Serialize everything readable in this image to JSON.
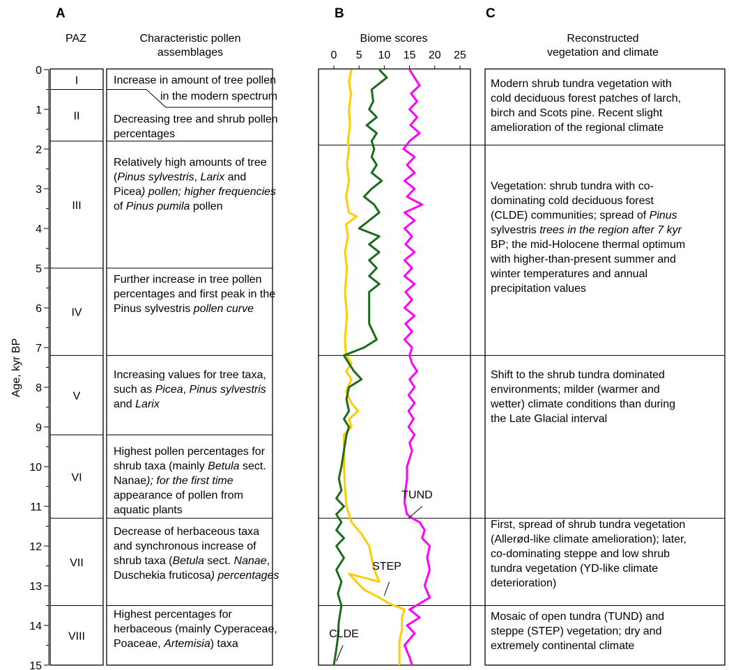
{
  "panels": {
    "a": "A",
    "b": "B",
    "c": "C"
  },
  "headers": {
    "paz": "PAZ",
    "assemblages": [
      "Characteristic pollen",
      "assemblages"
    ],
    "biome": "Biome scores",
    "reconstructed": [
      "Reconstructed",
      "vegetation and climate"
    ]
  },
  "age_axis": {
    "label": "Age, kyr BP",
    "ticks": [
      "0",
      "1",
      "2",
      "3",
      "4",
      "5",
      "6",
      "7",
      "8",
      "9",
      "10",
      "11",
      "12",
      "13",
      "14",
      "15"
    ],
    "range": [
      0,
      15
    ]
  },
  "zones": [
    {
      "id": "I",
      "top": 0,
      "bottom": 0.5
    },
    {
      "id": "II",
      "top": 0.5,
      "bottom": 1.8
    },
    {
      "id": "III",
      "top": 1.8,
      "bottom": 5
    },
    {
      "id": "IV",
      "top": 5,
      "bottom": 7.2
    },
    {
      "id": "V",
      "top": 7.2,
      "bottom": 9.2
    },
    {
      "id": "VI",
      "top": 9.2,
      "bottom": 11.3
    },
    {
      "id": "VII",
      "top": 11.3,
      "bottom": 13.5
    },
    {
      "id": "VIII",
      "top": 13.5,
      "bottom": 15
    }
  ],
  "assemblages": [
    {
      "lines": [
        [
          "Increase in amount of tree pollen"
        ],
        [
          "in the modern spectrum"
        ]
      ]
    },
    {
      "lines": [
        [
          "Decreasing tree and shrub pollen"
        ],
        [
          "percentages"
        ]
      ]
    },
    {
      "lines": [
        [
          "Relatively high amounts of tree"
        ],
        [
          "(",
          "Pinus sylvestris",
          ", ",
          "Larix",
          " and"
        ],
        [
          "Picea",
          ") pollen; higher frequencies"
        ],
        [
          "of ",
          "Pinus pumila",
          " pollen"
        ]
      ]
    },
    {
      "lines": [
        [
          "Further increase in tree pollen"
        ],
        [
          "percentages and first peak in the"
        ],
        [
          "Pinus sylvestris",
          " pollen curve"
        ]
      ]
    },
    {
      "lines": [
        [
          "Increasing values for tree taxa,"
        ],
        [
          "such as ",
          "Picea",
          ", ",
          "Pinus sylvestris"
        ],
        [
          "and ",
          "Larix"
        ]
      ]
    },
    {
      "lines": [
        [
          "Highest pollen percentages for"
        ],
        [
          "shrub taxa (mainly ",
          "Betula",
          " sect."
        ],
        [
          "Nanae",
          "); for the first time"
        ],
        [
          "appearance of pollen from"
        ],
        [
          "aquatic plants"
        ]
      ]
    },
    {
      "lines": [
        [
          "Decrease of herbaceous taxa"
        ],
        [
          "and synchronous increase of"
        ],
        [
          "shrub taxa (",
          "Betula",
          " sect. ",
          "Nanae",
          ","
        ],
        [
          "Duschekia fruticosa",
          ") percentages"
        ]
      ]
    },
    {
      "lines": [
        [
          "Highest percentages for"
        ],
        [
          "herbaceous (mainly Cyperaceae,"
        ],
        [
          "Poaceae,  ",
          "Artemisia",
          ") taxa"
        ]
      ]
    }
  ],
  "reconstructions": [
    {
      "top": 0,
      "bottom": 1.9,
      "lines": [
        [
          "Modern shrub tundra vegetation with"
        ],
        [
          "cold deciduous forest patches of larch,"
        ],
        [
          "birch and Scots pine. Recent slight"
        ],
        [
          "amelioration of the regional climate"
        ]
      ]
    },
    {
      "top": 1.9,
      "bottom": 7.2,
      "lines": [
        [
          "Vegetation: shrub tundra with co-"
        ],
        [
          "dominating cold deciduous forest"
        ],
        [
          "(CLDE) communities; spread of ",
          "Pinus"
        ],
        [
          "sylvestris",
          " trees in the region after 7 kyr"
        ],
        [
          "BP; the mid-Holocene thermal optimum"
        ],
        [
          "with higher-than-present summer and"
        ],
        [
          "winter temperatures and annual"
        ],
        [
          "precipitation values"
        ]
      ]
    },
    {
      "top": 7.2,
      "bottom": 11.3,
      "lines": [
        [
          "Shift to the shrub tundra dominated"
        ],
        [
          "environments; milder (warmer and"
        ],
        [
          "wetter) climate conditions than during"
        ],
        [
          "the Late Glacial interval"
        ]
      ]
    },
    {
      "top": 11.3,
      "bottom": 13.5,
      "lines": [
        [
          "First, spread of shrub tundra vegetation"
        ],
        [
          "(Allerød-like climate amelioration); later,"
        ],
        [
          "co-dominating steppe and low shrub"
        ],
        [
          "tundra vegetation (YD-like climate"
        ],
        [
          "deterioration)"
        ]
      ]
    },
    {
      "top": 13.5,
      "bottom": 15,
      "lines": [
        [
          "Mosaic of open tundra (TUND) and"
        ],
        [
          "steppe (STEP) vegetation; dry and"
        ],
        [
          "extremely continental climate"
        ]
      ]
    }
  ],
  "chart_data": {
    "type": "line",
    "title": "Biome scores",
    "xlabel": "",
    "ylabel": "Age, kyr BP",
    "x_ticks": [
      "0",
      "5",
      "10",
      "15",
      "20",
      "25"
    ],
    "xlim": [
      0,
      25
    ],
    "ylim": [
      0,
      15
    ],
    "y_reversed": true,
    "series": [
      {
        "name": "TUND",
        "color": "#ff00ff",
        "points": [
          [
            15,
            0
          ],
          [
            16,
            0.2
          ],
          [
            17,
            0.4
          ],
          [
            15.3,
            0.6
          ],
          [
            16.5,
            0.8
          ],
          [
            15,
            1
          ],
          [
            16.5,
            1.2
          ],
          [
            15.2,
            1.4
          ],
          [
            17,
            1.6
          ],
          [
            15,
            1.8
          ],
          [
            13.8,
            2.0
          ],
          [
            16,
            2.2
          ],
          [
            14.5,
            2.4
          ],
          [
            16,
            2.6
          ],
          [
            14,
            2.8
          ],
          [
            16,
            3.0
          ],
          [
            14.5,
            3.2
          ],
          [
            17.5,
            3.4
          ],
          [
            14,
            3.6
          ],
          [
            16,
            3.8
          ],
          [
            14,
            4.0
          ],
          [
            15.5,
            4.2
          ],
          [
            14.2,
            4.4
          ],
          [
            16,
            4.6
          ],
          [
            14,
            4.8
          ],
          [
            15.5,
            5.0
          ],
          [
            14,
            5.2
          ],
          [
            16,
            5.4
          ],
          [
            14.2,
            5.6
          ],
          [
            15.5,
            5.8
          ],
          [
            14,
            6.0
          ],
          [
            16,
            6.2
          ],
          [
            14.2,
            6.4
          ],
          [
            15.5,
            6.6
          ],
          [
            14,
            6.8
          ],
          [
            15.5,
            7.0
          ],
          [
            15,
            7.2
          ],
          [
            15.5,
            7.4
          ],
          [
            16.5,
            7.6
          ],
          [
            15,
            7.8
          ],
          [
            16,
            8.0
          ],
          [
            14.8,
            8.2
          ],
          [
            16,
            8.4
          ],
          [
            14.8,
            8.6
          ],
          [
            15.8,
            8.8
          ],
          [
            14.8,
            9.0
          ],
          [
            16,
            9.2
          ],
          [
            15,
            9.4
          ],
          [
            15.5,
            9.6
          ],
          [
            15,
            9.8
          ],
          [
            14.5,
            10.0
          ],
          [
            14.5,
            10.3
          ],
          [
            14.2,
            10.6
          ],
          [
            14,
            10.9
          ],
          [
            14.5,
            11.2
          ],
          [
            15.5,
            11.3
          ],
          [
            17,
            11.4
          ],
          [
            18,
            11.6
          ],
          [
            17.5,
            11.8
          ],
          [
            19,
            12.0
          ],
          [
            18.5,
            12.3
          ],
          [
            19,
            12.6
          ],
          [
            18,
            13.0
          ],
          [
            19,
            13.3
          ],
          [
            15,
            13.6
          ],
          [
            17,
            13.8
          ],
          [
            14.5,
            14.0
          ],
          [
            16,
            14.2
          ],
          [
            14,
            14.5
          ],
          [
            15,
            14.8
          ],
          [
            15.5,
            15.0
          ]
        ]
      },
      {
        "name": "STEP",
        "color": "#ffcc00",
        "points": [
          [
            3.5,
            0
          ],
          [
            3,
            0.3
          ],
          [
            3.4,
            0.6
          ],
          [
            3,
            1
          ],
          [
            3.2,
            1.4
          ],
          [
            2.8,
            1.8
          ],
          [
            3,
            2.0
          ],
          [
            2.6,
            2.4
          ],
          [
            3,
            2.8
          ],
          [
            2.4,
            3.2
          ],
          [
            3,
            3.6
          ],
          [
            4.5,
            3.7
          ],
          [
            2.4,
            3.9
          ],
          [
            2.8,
            4.2
          ],
          [
            2.2,
            4.6
          ],
          [
            2.6,
            5.0
          ],
          [
            2.2,
            5.6
          ],
          [
            2.6,
            6.2
          ],
          [
            2.2,
            6.8
          ],
          [
            2.4,
            7.2
          ],
          [
            3.5,
            7.4
          ],
          [
            2.4,
            7.6
          ],
          [
            3.5,
            7.8
          ],
          [
            2.4,
            8.1
          ],
          [
            3.5,
            8.4
          ],
          [
            4.8,
            8.6
          ],
          [
            3,
            8.8
          ],
          [
            3.5,
            9.0
          ],
          [
            2,
            9.2
          ],
          [
            2,
            10
          ],
          [
            2.2,
            10.5
          ],
          [
            2.5,
            11
          ],
          [
            3.5,
            11.4
          ],
          [
            5.5,
            11.7
          ],
          [
            7,
            12.0
          ],
          [
            7.5,
            12.3
          ],
          [
            8,
            12.6
          ],
          [
            9,
            12.9
          ],
          [
            3,
            12.7
          ],
          [
            6,
            13.1
          ],
          [
            9,
            13.3
          ],
          [
            11,
            13.45
          ],
          [
            14,
            13.6
          ],
          [
            13.5,
            13.8
          ],
          [
            13.5,
            14.1
          ],
          [
            13,
            14.4
          ],
          [
            13,
            14.8
          ],
          [
            13,
            15.0
          ]
        ]
      },
      {
        "name": "CLDE",
        "color": "#1a6b1a",
        "points": [
          [
            9,
            0
          ],
          [
            10.5,
            0.2
          ],
          [
            7.5,
            0.5
          ],
          [
            7.8,
            0.8
          ],
          [
            7,
            1
          ],
          [
            8.5,
            1.2
          ],
          [
            6.5,
            1.4
          ],
          [
            8.5,
            1.6
          ],
          [
            7.5,
            1.8
          ],
          [
            8,
            2.0
          ],
          [
            7.5,
            2.2
          ],
          [
            8.5,
            2.4
          ],
          [
            7.5,
            2.6
          ],
          [
            9.5,
            2.8
          ],
          [
            7.5,
            3.0
          ],
          [
            6,
            3.2
          ],
          [
            8,
            3.4
          ],
          [
            9,
            3.6
          ],
          [
            5,
            4.0
          ],
          [
            9,
            4.2
          ],
          [
            7,
            4.4
          ],
          [
            9,
            4.6
          ],
          [
            7,
            4.8
          ],
          [
            8.5,
            5.0
          ],
          [
            7,
            5.2
          ],
          [
            9,
            5.4
          ],
          [
            7,
            5.6
          ],
          [
            7,
            6.0
          ],
          [
            7,
            6.4
          ],
          [
            8.5,
            6.8
          ],
          [
            6,
            7.0
          ],
          [
            2,
            7.2
          ],
          [
            3,
            7.4
          ],
          [
            4,
            7.6
          ],
          [
            5.5,
            7.8
          ],
          [
            3,
            8.0
          ],
          [
            2.5,
            8.3
          ],
          [
            3,
            8.6
          ],
          [
            2,
            8.8
          ],
          [
            3,
            9.0
          ],
          [
            2.5,
            9.2
          ],
          [
            2,
            9.6
          ],
          [
            1.5,
            10.0
          ],
          [
            1,
            10.3
          ],
          [
            1.5,
            10.6
          ],
          [
            0.5,
            10.8
          ],
          [
            2,
            11.0
          ],
          [
            0.5,
            11.2
          ],
          [
            1.5,
            11.4
          ],
          [
            0.5,
            11.6
          ],
          [
            2,
            11.8
          ],
          [
            0.5,
            12.0
          ],
          [
            2,
            12.3
          ],
          [
            0.5,
            12.6
          ],
          [
            1.5,
            12.9
          ],
          [
            0.8,
            13.2
          ],
          [
            1.5,
            13.5
          ],
          [
            1,
            13.9
          ],
          [
            0.8,
            14.3
          ],
          [
            0.5,
            14.6
          ],
          [
            0,
            15.0
          ]
        ]
      }
    ],
    "annotations": [
      {
        "text": "TUND",
        "x": 16.5,
        "y": 10.8
      },
      {
        "text": "STEP",
        "x": 10.5,
        "y": 12.6
      },
      {
        "text": "CLDE",
        "x": 2,
        "y": 14.3
      }
    ]
  }
}
